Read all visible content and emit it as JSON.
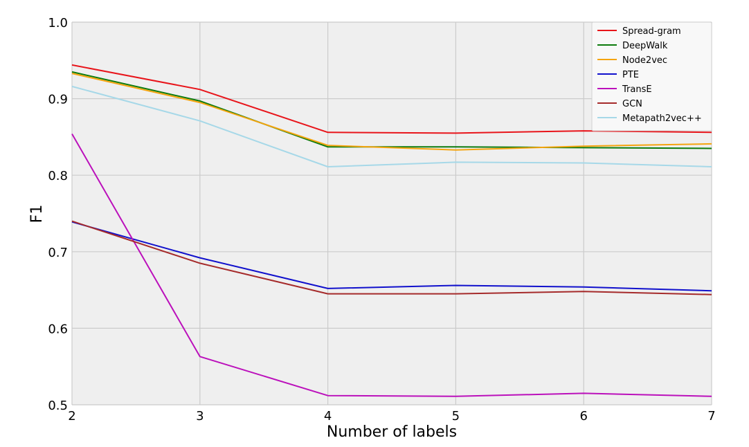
{
  "chart_data": {
    "type": "line",
    "title": "",
    "xlabel": "Number of labels",
    "ylabel": "F1",
    "x": [
      2,
      3,
      4,
      5,
      6,
      7
    ],
    "xlim": [
      2,
      7
    ],
    "ylim": [
      0.5,
      1.0
    ],
    "x_ticks": [
      "2",
      "3",
      "4",
      "5",
      "6",
      "7"
    ],
    "y_ticks": [
      "0.5",
      "0.6",
      "0.7",
      "0.8",
      "0.9",
      "1.0"
    ],
    "grid": true,
    "legend_position": "top-right",
    "background_color": "#efefef",
    "grid_color": "#cbcbcb",
    "series": [
      {
        "name": "Spread-gram",
        "color": "#e8141a",
        "values": [
          0.944,
          0.912,
          0.856,
          0.855,
          0.858,
          0.856
        ]
      },
      {
        "name": "DeepWalk",
        "color": "#0c7a0c",
        "values": [
          0.935,
          0.897,
          0.837,
          0.837,
          0.836,
          0.835
        ]
      },
      {
        "name": "Node2vec",
        "color": "#f5a40d",
        "values": [
          0.933,
          0.895,
          0.839,
          0.833,
          0.838,
          0.841
        ]
      },
      {
        "name": "PTE",
        "color": "#1010cc",
        "values": [
          0.739,
          0.692,
          0.652,
          0.656,
          0.654,
          0.649
        ]
      },
      {
        "name": "TransE",
        "color": "#bb10bb",
        "values": [
          0.854,
          0.563,
          0.512,
          0.511,
          0.515,
          0.511
        ]
      },
      {
        "name": "GCN",
        "color": "#a52a2a",
        "values": [
          0.74,
          0.685,
          0.645,
          0.645,
          0.648,
          0.644
        ]
      },
      {
        "name": "Metapath2vec++",
        "color": "#a6d8e8",
        "values": [
          0.916,
          0.871,
          0.811,
          0.817,
          0.816,
          0.811
        ]
      }
    ]
  }
}
